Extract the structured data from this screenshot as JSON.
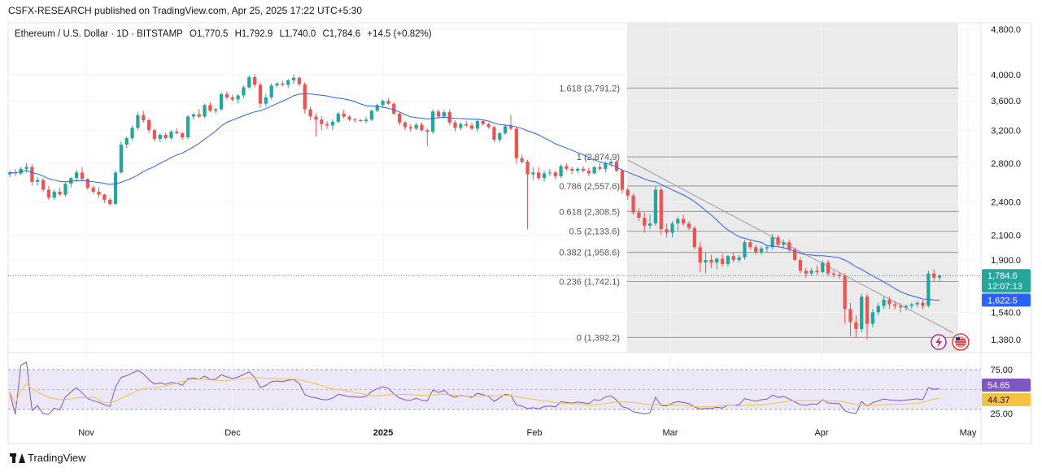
{
  "header": {
    "publisher_line": "CSFX-RESEARCH published on TradingView.com, Apr 25, 2025 17:22 UTC+5:30"
  },
  "legend": {
    "symbol": "Ethereum / U.S. Dollar · 1D · BITSTAMP",
    "open": "O1,770.5",
    "high": "H1,792.9",
    "low": "L1,740.0",
    "close": "C1,784.6",
    "change": "+14.5 (+0.82%)"
  },
  "footer": {
    "brand": "TradingView"
  },
  "colors": {
    "up": "#26a69a",
    "down": "#ef5350",
    "ma": "#2962ff",
    "rsi": "#7e57c2",
    "rsi_ma": "#f5c242",
    "current_price": "#26a69a"
  },
  "chart_data": {
    "type": "candlestick",
    "x_labels": [
      "Nov",
      "Dec",
      "2025",
      "Feb",
      "Mar",
      "Apr",
      "May"
    ],
    "y_ticks": [
      "4,800.0",
      "4,000.0",
      "3,600.0",
      "3,200.0",
      "2,800.0",
      "2,400.0",
      "2,100.0",
      "1,900.0",
      "1,540.0",
      "1,380.0"
    ],
    "y_scale": "log",
    "ylim": [
      1300,
      4900
    ],
    "candles": [
      [
        2680,
        2720,
        2650,
        2700
      ],
      [
        2700,
        2740,
        2660,
        2690
      ],
      [
        2690,
        2760,
        2670,
        2740
      ],
      [
        2740,
        2800,
        2700,
        2760
      ],
      [
        2760,
        2790,
        2560,
        2600
      ],
      [
        2600,
        2650,
        2560,
        2620
      ],
      [
        2620,
        2640,
        2500,
        2520
      ],
      [
        2520,
        2560,
        2420,
        2440
      ],
      [
        2440,
        2520,
        2420,
        2500
      ],
      [
        2500,
        2540,
        2460,
        2470
      ],
      [
        2470,
        2600,
        2450,
        2580
      ],
      [
        2580,
        2650,
        2540,
        2640
      ],
      [
        2640,
        2730,
        2600,
        2700
      ],
      [
        2700,
        2760,
        2620,
        2630
      ],
      [
        2630,
        2640,
        2520,
        2540
      ],
      [
        2540,
        2560,
        2480,
        2500
      ],
      [
        2500,
        2540,
        2440,
        2470
      ],
      [
        2470,
        2480,
        2390,
        2420
      ],
      [
        2420,
        2440,
        2360,
        2380
      ],
      [
        2380,
        2720,
        2370,
        2700
      ],
      [
        2700,
        3060,
        2690,
        3020
      ],
      [
        3020,
        3120,
        2980,
        3100
      ],
      [
        3100,
        3260,
        3070,
        3230
      ],
      [
        3230,
        3440,
        3200,
        3400
      ],
      [
        3400,
        3460,
        3300,
        3330
      ],
      [
        3330,
        3360,
        3160,
        3200
      ],
      [
        3200,
        3220,
        3060,
        3090
      ],
      [
        3090,
        3160,
        3050,
        3140
      ],
      [
        3140,
        3170,
        3080,
        3100
      ],
      [
        3100,
        3200,
        3080,
        3180
      ],
      [
        3180,
        3230,
        3150,
        3160
      ],
      [
        3160,
        3180,
        3080,
        3110
      ],
      [
        3110,
        3400,
        3090,
        3380
      ],
      [
        3380,
        3430,
        3340,
        3410
      ],
      [
        3410,
        3480,
        3360,
        3380
      ],
      [
        3380,
        3560,
        3360,
        3540
      ],
      [
        3540,
        3580,
        3440,
        3460
      ],
      [
        3460,
        3500,
        3420,
        3480
      ],
      [
        3480,
        3720,
        3460,
        3700
      ],
      [
        3700,
        3740,
        3620,
        3650
      ],
      [
        3650,
        3690,
        3590,
        3620
      ],
      [
        3620,
        3700,
        3560,
        3680
      ],
      [
        3680,
        3830,
        3640,
        3800
      ],
      [
        3800,
        3990,
        3780,
        3960
      ],
      [
        3960,
        4010,
        3800,
        3840
      ],
      [
        3840,
        3880,
        3500,
        3560
      ],
      [
        3560,
        3700,
        3520,
        3650
      ],
      [
        3650,
        3860,
        3620,
        3830
      ],
      [
        3830,
        3880,
        3800,
        3860
      ],
      [
        3860,
        3900,
        3820,
        3840
      ],
      [
        3840,
        3930,
        3790,
        3910
      ],
      [
        3910,
        4000,
        3850,
        3950
      ],
      [
        3950,
        3970,
        3820,
        3850
      ],
      [
        3850,
        3880,
        3420,
        3480
      ],
      [
        3480,
        3520,
        3330,
        3380
      ],
      [
        3380,
        3420,
        3120,
        3340
      ],
      [
        3340,
        3390,
        3200,
        3280
      ],
      [
        3280,
        3320,
        3220,
        3260
      ],
      [
        3260,
        3340,
        3200,
        3310
      ],
      [
        3310,
        3440,
        3290,
        3420
      ],
      [
        3420,
        3470,
        3360,
        3380
      ],
      [
        3380,
        3400,
        3320,
        3340
      ],
      [
        3340,
        3360,
        3300,
        3330
      ],
      [
        3330,
        3350,
        3310,
        3320
      ],
      [
        3320,
        3380,
        3290,
        3340
      ],
      [
        3340,
        3480,
        3320,
        3460
      ],
      [
        3460,
        3560,
        3440,
        3540
      ],
      [
        3540,
        3620,
        3500,
        3600
      ],
      [
        3600,
        3640,
        3540,
        3560
      ],
      [
        3560,
        3580,
        3400,
        3420
      ],
      [
        3420,
        3440,
        3260,
        3300
      ],
      [
        3300,
        3320,
        3200,
        3240
      ],
      [
        3240,
        3280,
        3180,
        3220
      ],
      [
        3220,
        3300,
        3200,
        3270
      ],
      [
        3270,
        3300,
        3180,
        3200
      ],
      [
        3200,
        3220,
        3000,
        3180
      ],
      [
        3180,
        3480,
        3150,
        3450
      ],
      [
        3450,
        3480,
        3350,
        3380
      ],
      [
        3380,
        3470,
        3360,
        3440
      ],
      [
        3440,
        3480,
        3260,
        3300
      ],
      [
        3300,
        3330,
        3180,
        3230
      ],
      [
        3230,
        3300,
        3200,
        3280
      ],
      [
        3280,
        3320,
        3240,
        3260
      ],
      [
        3260,
        3300,
        3200,
        3220
      ],
      [
        3220,
        3340,
        3180,
        3320
      ],
      [
        3320,
        3340,
        3260,
        3280
      ],
      [
        3280,
        3300,
        3220,
        3240
      ],
      [
        3240,
        3260,
        3050,
        3080
      ],
      [
        3080,
        3180,
        3050,
        3160
      ],
      [
        3160,
        3280,
        3140,
        3250
      ],
      [
        3250,
        3400,
        3200,
        3220
      ],
      [
        3220,
        3240,
        2800,
        2860
      ],
      [
        2860,
        2900,
        2800,
        2820
      ],
      [
        2820,
        2840,
        2150,
        2680
      ],
      [
        2680,
        2760,
        2620,
        2700
      ],
      [
        2700,
        2760,
        2620,
        2640
      ],
      [
        2640,
        2720,
        2600,
        2690
      ],
      [
        2690,
        2740,
        2660,
        2700
      ],
      [
        2700,
        2720,
        2630,
        2660
      ],
      [
        2660,
        2790,
        2640,
        2770
      ],
      [
        2770,
        2800,
        2720,
        2740
      ],
      [
        2740,
        2760,
        2680,
        2720
      ],
      [
        2720,
        2760,
        2690,
        2740
      ],
      [
        2740,
        2770,
        2700,
        2720
      ],
      [
        2720,
        2750,
        2660,
        2690
      ],
      [
        2690,
        2770,
        2680,
        2760
      ],
      [
        2760,
        2800,
        2720,
        2740
      ],
      [
        2740,
        2820,
        2700,
        2800
      ],
      [
        2800,
        2860,
        2760,
        2820
      ],
      [
        2820,
        2840,
        2700,
        2720
      ],
      [
        2720,
        2740,
        2480,
        2520
      ],
      [
        2520,
        2540,
        2420,
        2460
      ],
      [
        2460,
        2480,
        2280,
        2300
      ],
      [
        2300,
        2340,
        2220,
        2250
      ],
      [
        2250,
        2300,
        2120,
        2180
      ],
      [
        2180,
        2280,
        2150,
        2200
      ],
      [
        2200,
        2560,
        2180,
        2520
      ],
      [
        2520,
        2540,
        2100,
        2150
      ],
      [
        2150,
        2200,
        2080,
        2120
      ],
      [
        2120,
        2220,
        2080,
        2200
      ],
      [
        2200,
        2260,
        2140,
        2240
      ],
      [
        2240,
        2280,
        2180,
        2200
      ],
      [
        2200,
        2220,
        2140,
        2160
      ],
      [
        2160,
        2180,
        1980,
        2000
      ],
      [
        2000,
        2040,
        1810,
        1880
      ],
      [
        1880,
        1960,
        1800,
        1900
      ],
      [
        1900,
        1940,
        1840,
        1880
      ],
      [
        1880,
        1920,
        1830,
        1910
      ],
      [
        1910,
        1950,
        1850,
        1870
      ],
      [
        1870,
        1940,
        1850,
        1930
      ],
      [
        1930,
        1960,
        1880,
        1900
      ],
      [
        1900,
        1940,
        1880,
        1920
      ],
      [
        1920,
        2060,
        1900,
        2040
      ],
      [
        2040,
        2060,
        1980,
        2000
      ],
      [
        2000,
        2020,
        1940,
        1960
      ],
      [
        1960,
        2010,
        1940,
        1990
      ],
      [
        1990,
        2020,
        1960,
        2000
      ],
      [
        2000,
        2110,
        1980,
        2080
      ],
      [
        2080,
        2100,
        2000,
        2020
      ],
      [
        2020,
        2060,
        1990,
        2040
      ],
      [
        2040,
        2060,
        1960,
        1980
      ],
      [
        1980,
        2000,
        1890,
        1900
      ],
      [
        1900,
        1920,
        1800,
        1820
      ],
      [
        1820,
        1840,
        1770,
        1800
      ],
      [
        1800,
        1840,
        1780,
        1820
      ],
      [
        1820,
        1860,
        1790,
        1810
      ],
      [
        1810,
        1900,
        1800,
        1880
      ],
      [
        1880,
        1900,
        1780,
        1800
      ],
      [
        1800,
        1820,
        1770,
        1790
      ],
      [
        1790,
        1810,
        1760,
        1780
      ],
      [
        1780,
        1800,
        1470,
        1560
      ],
      [
        1560,
        1600,
        1400,
        1480
      ],
      [
        1480,
        1520,
        1390,
        1440
      ],
      [
        1440,
        1660,
        1420,
        1640
      ],
      [
        1640,
        1660,
        1380,
        1470
      ],
      [
        1470,
        1560,
        1450,
        1540
      ],
      [
        1540,
        1600,
        1520,
        1580
      ],
      [
        1580,
        1640,
        1560,
        1620
      ],
      [
        1620,
        1640,
        1560,
        1590
      ],
      [
        1590,
        1610,
        1560,
        1580
      ],
      [
        1580,
        1600,
        1540,
        1570
      ],
      [
        1570,
        1590,
        1550,
        1580
      ],
      [
        1580,
        1600,
        1560,
        1590
      ],
      [
        1590,
        1610,
        1570,
        1600
      ],
      [
        1600,
        1620,
        1560,
        1580
      ],
      [
        1580,
        1820,
        1570,
        1800
      ],
      [
        1800,
        1830,
        1740,
        1770
      ],
      [
        1770,
        1793,
        1740,
        1784.6
      ]
    ],
    "fibonacci": [
      {
        "label": "1.618 (3,791.2)",
        "value": 3791.2
      },
      {
        "label": "1 (2,874.9)",
        "value": 2874.9
      },
      {
        "label": "0.786 (2,557.6)",
        "value": 2557.6
      },
      {
        "label": "0.618 (2,308.5)",
        "value": 2308.5
      },
      {
        "label": "0.5 (2,133.6)",
        "value": 2133.6
      },
      {
        "label": "0.382 (1,958.6)",
        "value": 1958.6
      },
      {
        "label": "0.236 (1,742.1)",
        "value": 1742.1
      },
      {
        "label": "0 (1,392.2)",
        "value": 1392.2
      }
    ],
    "current_price": {
      "value": 1784.6,
      "label": "1,784.6",
      "countdown": "12:07:13"
    },
    "ma_price": {
      "value": 1622.5,
      "label": "1,622.5"
    },
    "rsi": {
      "levels": [
        "75.00",
        "25.00"
      ],
      "value_label": "54.65",
      "ma_label": "44.37",
      "ylim": [
        20,
        90
      ]
    }
  }
}
